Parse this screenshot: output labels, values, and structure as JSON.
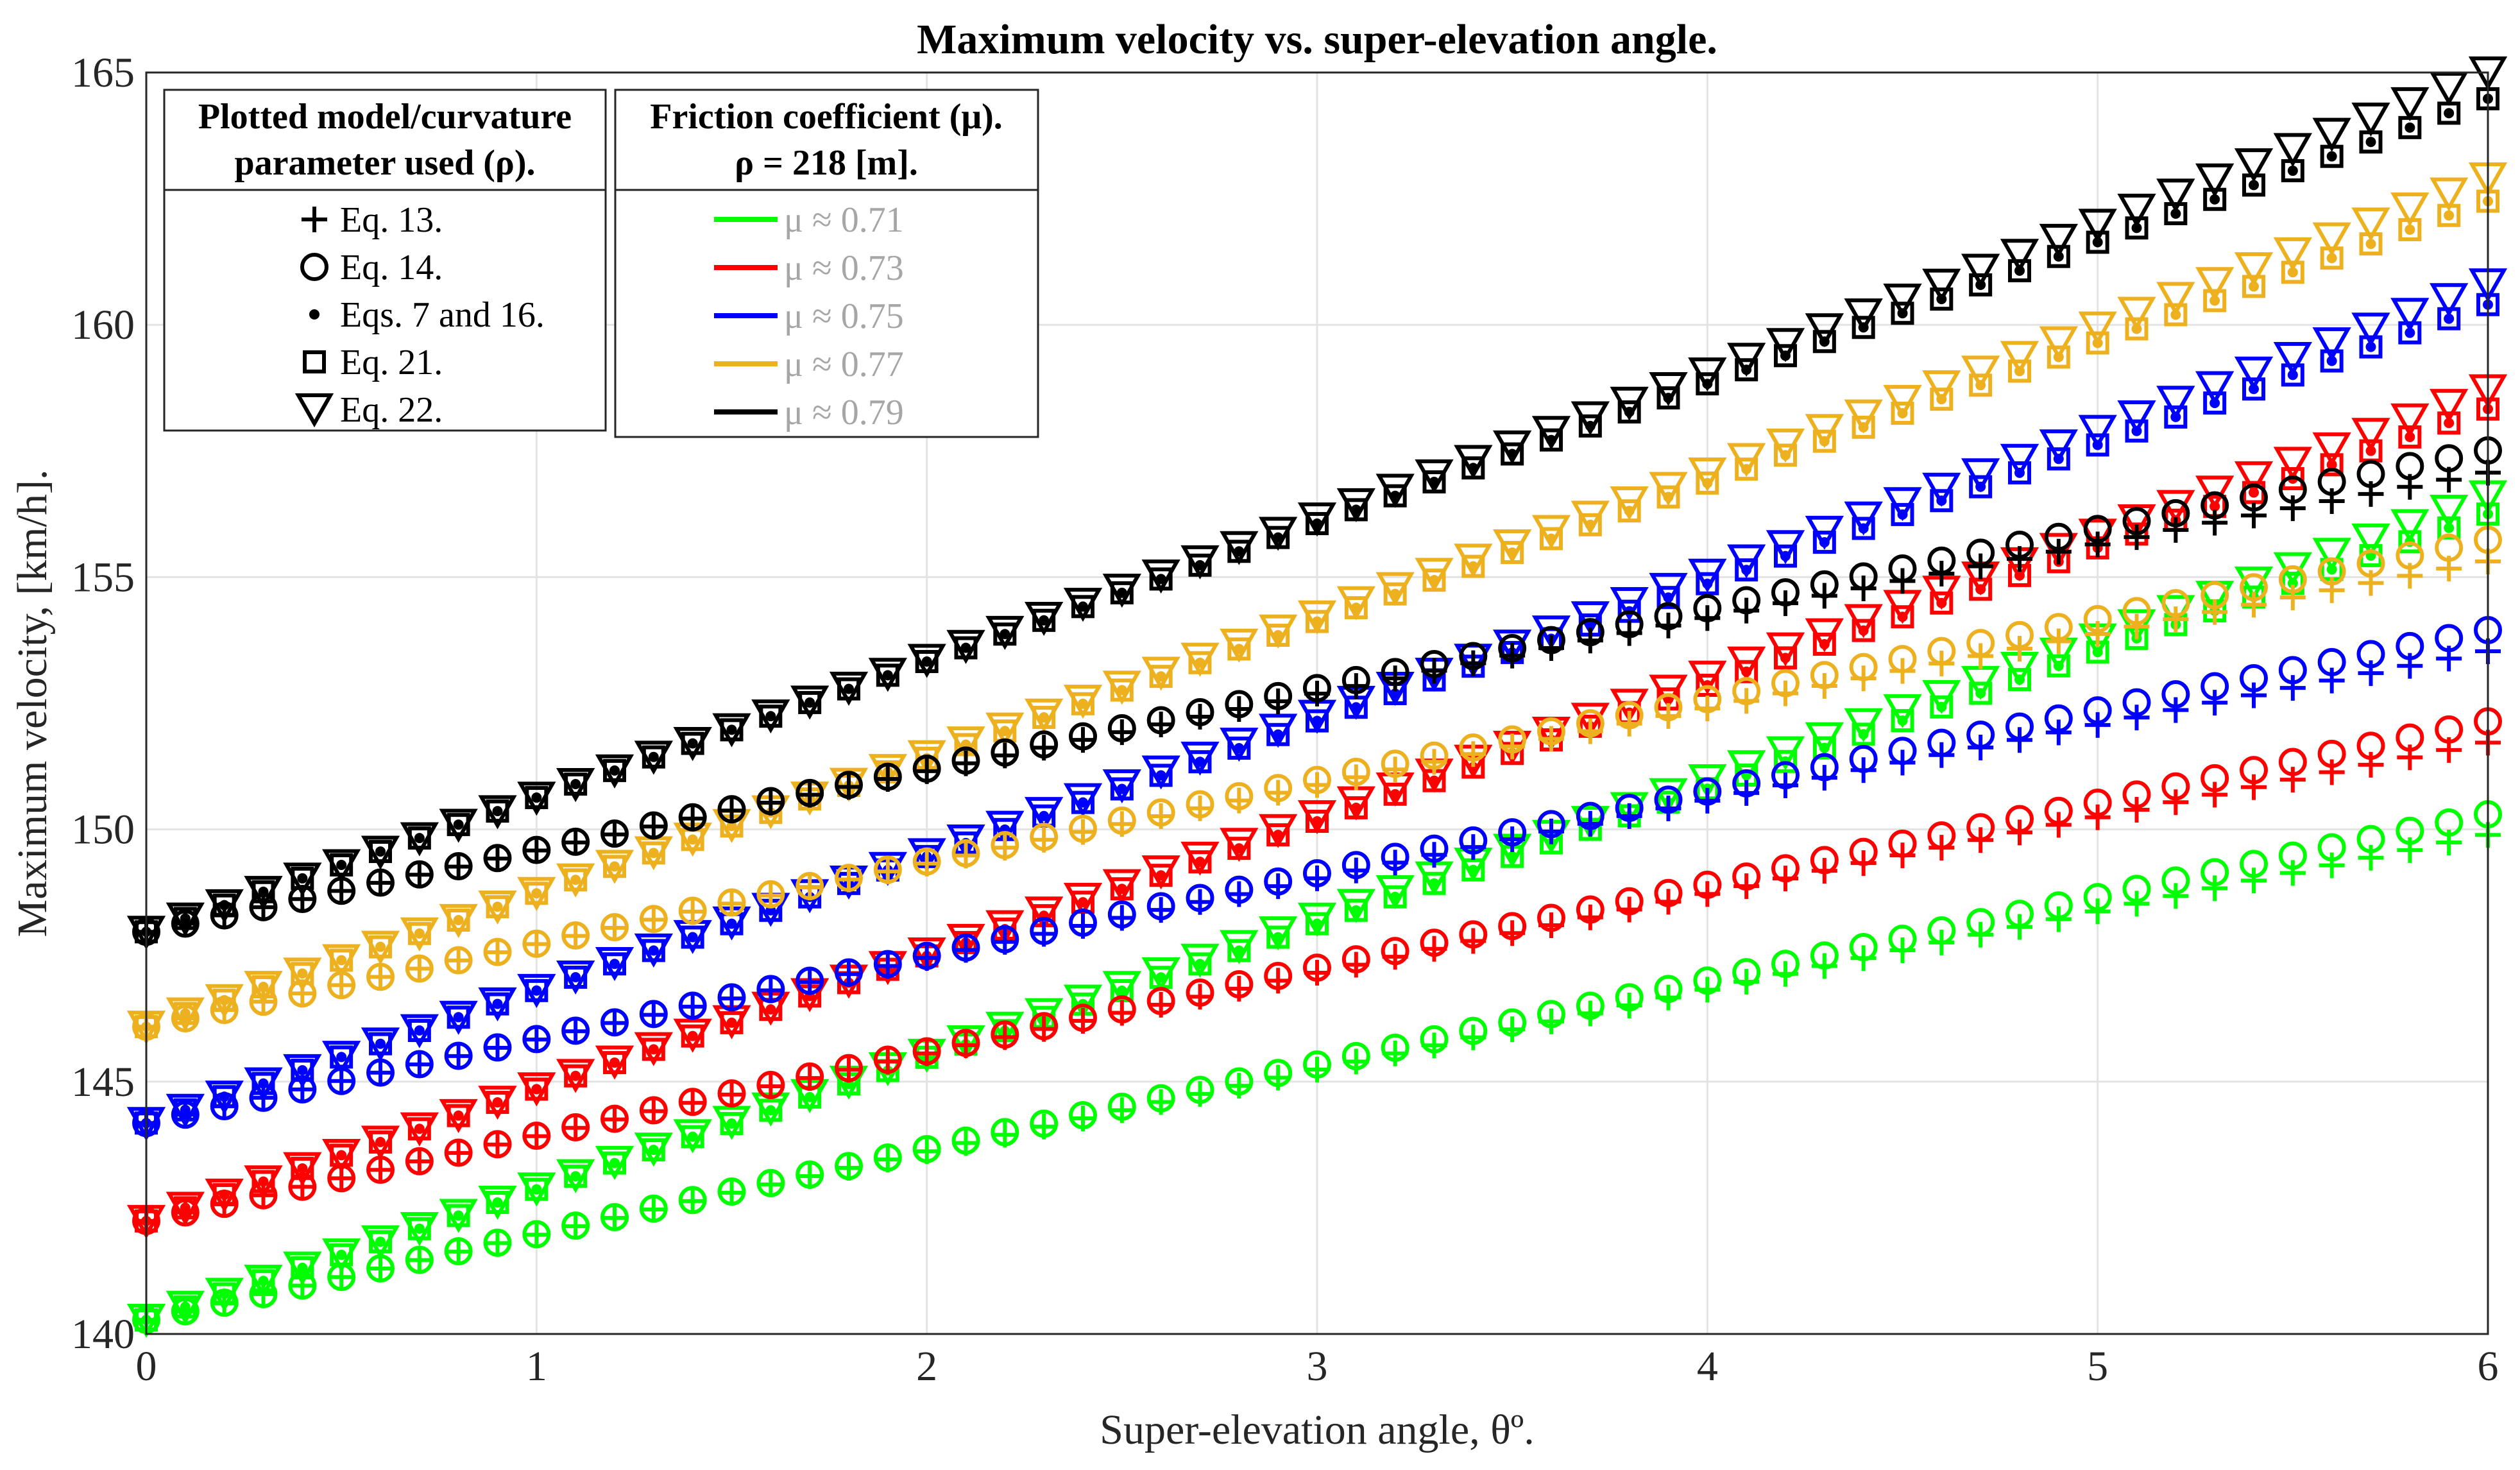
{
  "chart_data": {
    "type": "scatter",
    "title": "Maximum velocity vs. super-elevation angle.",
    "xlabel": "Super-elevation angle, θº.",
    "ylabel": "Maximum velocity, [km/h].",
    "xlim": [
      0,
      6
    ],
    "ylim": [
      140,
      165
    ],
    "xticks": [
      "0",
      "1",
      "2",
      "3",
      "4",
      "5",
      "6"
    ],
    "yticks": [
      "140",
      "145",
      "150",
      "155",
      "160",
      "165"
    ],
    "grid": true,
    "marker_x_step": 0.1,
    "anchor_x": [
      0,
      3,
      6
    ],
    "legend_markers": {
      "title_line1": "Plotted model/curvature",
      "title_line2": "parameter used (ρ).",
      "placement": "top-left",
      "items": [
        {
          "marker": "plus",
          "label": "Eq. 13."
        },
        {
          "marker": "circle",
          "label": "Eq. 14."
        },
        {
          "marker": "dot",
          "label": "Eqs. 7 and 16."
        },
        {
          "marker": "square",
          "label": "Eq. 21."
        },
        {
          "marker": "triangle-down",
          "label": "Eq. 22."
        }
      ]
    },
    "legend_colors": {
      "title_line1": "Friction coefficient (μ).",
      "title_line2": "ρ = 218 [m].",
      "items": [
        {
          "label": "μ ≈ 0.71",
          "color": "#00ff00"
        },
        {
          "label": "μ ≈ 0.73",
          "color": "#ff0000"
        },
        {
          "label": "μ ≈ 0.75",
          "color": "#0000ff"
        },
        {
          "label": "μ ≈ 0.77",
          "color": "#edb120"
        },
        {
          "label": "μ ≈ 0.79",
          "color": "#000000"
        }
      ]
    },
    "series": [
      {
        "mu": 0.71,
        "color": "#00ff00",
        "eq13": [
          140.28,
          145.24,
          149.89
        ],
        "eq14": [
          140.28,
          145.34,
          150.3
        ],
        "eq7_16": [
          140.28,
          148.13,
          156.25
        ],
        "eq21": [
          140.28,
          148.13,
          156.25
        ],
        "eq22": [
          140.28,
          148.23,
          156.6
        ]
      },
      {
        "mu": 0.73,
        "color": "#ff0000",
        "eq13": [
          142.24,
          147.16,
          151.72
        ],
        "eq14": [
          142.24,
          147.26,
          152.14
        ],
        "eq7_16": [
          142.24,
          150.16,
          158.33
        ],
        "eq21": [
          142.24,
          150.16,
          158.33
        ],
        "eq22": [
          142.24,
          150.26,
          158.7
        ]
      },
      {
        "mu": 0.75,
        "color": "#0000ff",
        "eq13": [
          144.18,
          149.03,
          153.53
        ],
        "eq14": [
          144.18,
          149.13,
          153.95
        ],
        "eq7_16": [
          144.18,
          152.15,
          160.4
        ],
        "eq21": [
          144.18,
          152.15,
          160.4
        ],
        "eq22": [
          144.18,
          152.25,
          160.8
        ]
      },
      {
        "mu": 0.77,
        "color": "#edb120",
        "eq13": [
          146.09,
          150.88,
          155.31
        ],
        "eq14": [
          146.09,
          150.98,
          155.74
        ],
        "eq7_16": [
          146.09,
          154.12,
          162.45
        ],
        "eq21": [
          146.09,
          154.12,
          162.45
        ],
        "eq22": [
          146.09,
          154.22,
          162.9
        ]
      },
      {
        "mu": 0.79,
        "color": "#000000",
        "eq13": [
          147.97,
          152.69,
          157.07
        ],
        "eq14": [
          147.97,
          152.8,
          157.51
        ],
        "eq7_16": [
          147.97,
          156.06,
          164.48
        ],
        "eq21": [
          147.97,
          156.06,
          164.48
        ],
        "eq22": [
          147.97,
          156.16,
          165.0
        ]
      }
    ]
  }
}
